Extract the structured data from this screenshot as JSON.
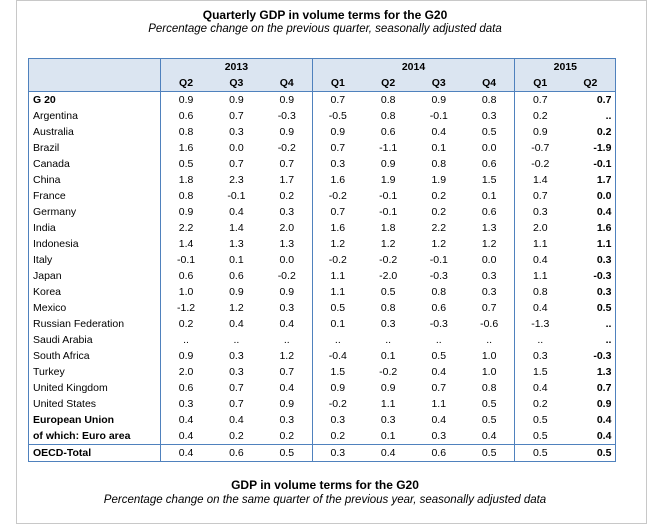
{
  "table1": {
    "title": "Quarterly GDP in volume terms for the G20",
    "subtitle": "Percentage change on the previous quarter, seasonally adjusted data",
    "years": [
      {
        "label": "2013",
        "span": 3
      },
      {
        "label": "2014",
        "span": 4
      },
      {
        "label": "2015",
        "span": 2
      }
    ],
    "quarters": [
      "Q2",
      "Q3",
      "Q4",
      "Q1",
      "Q2",
      "Q3",
      "Q4",
      "Q1",
      "Q2"
    ],
    "rows": [
      {
        "name": "G 20",
        "style": "g20",
        "values": [
          "0.9",
          "0.9",
          "0.9",
          "0.7",
          "0.8",
          "0.9",
          "0.8",
          "0.7",
          "0.7"
        ]
      },
      {
        "name": "Argentina",
        "style": "indent",
        "values": [
          "0.6",
          "0.7",
          "-0.3",
          "-0.5",
          "0.8",
          "-0.1",
          "0.3",
          "0.2",
          ".."
        ]
      },
      {
        "name": "Australia",
        "style": "indent",
        "values": [
          "0.8",
          "0.3",
          "0.9",
          "0.9",
          "0.6",
          "0.4",
          "0.5",
          "0.9",
          "0.2"
        ]
      },
      {
        "name": "Brazil",
        "style": "indent",
        "values": [
          "1.6",
          "0.0",
          "-0.2",
          "0.7",
          "-1.1",
          "0.1",
          "0.0",
          "-0.7",
          "-1.9"
        ]
      },
      {
        "name": "Canada",
        "style": "indent",
        "values": [
          "0.5",
          "0.7",
          "0.7",
          "0.3",
          "0.9",
          "0.8",
          "0.6",
          "-0.2",
          "-0.1"
        ]
      },
      {
        "name": "China",
        "style": "indent",
        "values": [
          "1.8",
          "2.3",
          "1.7",
          "1.6",
          "1.9",
          "1.9",
          "1.5",
          "1.4",
          "1.7"
        ]
      },
      {
        "name": "France",
        "style": "indent",
        "values": [
          "0.8",
          "-0.1",
          "0.2",
          "-0.2",
          "-0.1",
          "0.2",
          "0.1",
          "0.7",
          "0.0"
        ]
      },
      {
        "name": "Germany",
        "style": "indent",
        "values": [
          "0.9",
          "0.4",
          "0.3",
          "0.7",
          "-0.1",
          "0.2",
          "0.6",
          "0.3",
          "0.4"
        ]
      },
      {
        "name": "India",
        "style": "indent",
        "values": [
          "2.2",
          "1.4",
          "2.0",
          "1.6",
          "1.8",
          "2.2",
          "1.3",
          "2.0",
          "1.6"
        ]
      },
      {
        "name": "Indonesia",
        "style": "indent",
        "values": [
          "1.4",
          "1.3",
          "1.3",
          "1.2",
          "1.2",
          "1.2",
          "1.2",
          "1.1",
          "1.1"
        ]
      },
      {
        "name": "Italy",
        "style": "indent",
        "values": [
          "-0.1",
          "0.1",
          "0.0",
          "-0.2",
          "-0.2",
          "-0.1",
          "0.0",
          "0.4",
          "0.3"
        ]
      },
      {
        "name": "Japan",
        "style": "indent",
        "values": [
          "0.6",
          "0.6",
          "-0.2",
          "1.1",
          "-2.0",
          "-0.3",
          "0.3",
          "1.1",
          "-0.3"
        ]
      },
      {
        "name": "Korea",
        "style": "indent",
        "values": [
          "1.0",
          "0.9",
          "0.9",
          "1.1",
          "0.5",
          "0.8",
          "0.3",
          "0.8",
          "0.3"
        ]
      },
      {
        "name": "Mexico",
        "style": "indent",
        "values": [
          "-1.2",
          "1.2",
          "0.3",
          "0.5",
          "0.8",
          "0.6",
          "0.7",
          "0.4",
          "0.5"
        ]
      },
      {
        "name": "Russian Federation",
        "style": "indent",
        "values": [
          "0.2",
          "0.4",
          "0.4",
          "0.1",
          "0.3",
          "-0.3",
          "-0.6",
          "-1.3",
          ".."
        ]
      },
      {
        "name": "Saudi Arabia",
        "style": "indent",
        "values": [
          "..",
          "..",
          "..",
          "..",
          "..",
          "..",
          "..",
          "..",
          ".."
        ]
      },
      {
        "name": "South Africa",
        "style": "indent",
        "values": [
          "0.9",
          "0.3",
          "1.2",
          "-0.4",
          "0.1",
          "0.5",
          "1.0",
          "0.3",
          "-0.3"
        ]
      },
      {
        "name": "Turkey",
        "style": "indent",
        "values": [
          "2.0",
          "0.3",
          "0.7",
          "1.5",
          "-0.2",
          "0.4",
          "1.0",
          "1.5",
          "1.3"
        ]
      },
      {
        "name": "United Kingdom",
        "style": "indent",
        "values": [
          "0.6",
          "0.7",
          "0.4",
          "0.9",
          "0.9",
          "0.7",
          "0.8",
          "0.4",
          "0.7"
        ]
      },
      {
        "name": "United States",
        "style": "indent",
        "values": [
          "0.3",
          "0.7",
          "0.9",
          "-0.2",
          "1.1",
          "1.1",
          "0.5",
          "0.2",
          "0.9"
        ]
      },
      {
        "name": "European Union",
        "style": "eu",
        "values": [
          "0.4",
          "0.4",
          "0.3",
          "0.3",
          "0.3",
          "0.4",
          "0.5",
          "0.5",
          "0.4"
        ]
      },
      {
        "name": "of which:  Euro area",
        "style": "eu",
        "values": [
          "0.4",
          "0.2",
          "0.2",
          "0.2",
          "0.1",
          "0.3",
          "0.4",
          "0.5",
          "0.4"
        ]
      },
      {
        "name": "OECD-Total",
        "style": "oecd",
        "values": [
          "0.4",
          "0.6",
          "0.5",
          "0.3",
          "0.4",
          "0.6",
          "0.5",
          "0.5",
          "0.5"
        ]
      }
    ]
  },
  "table2": {
    "title": "GDP in volume terms for the G20",
    "subtitle": "Percentage change on the same quarter of the previous year, seasonally adjusted data"
  }
}
